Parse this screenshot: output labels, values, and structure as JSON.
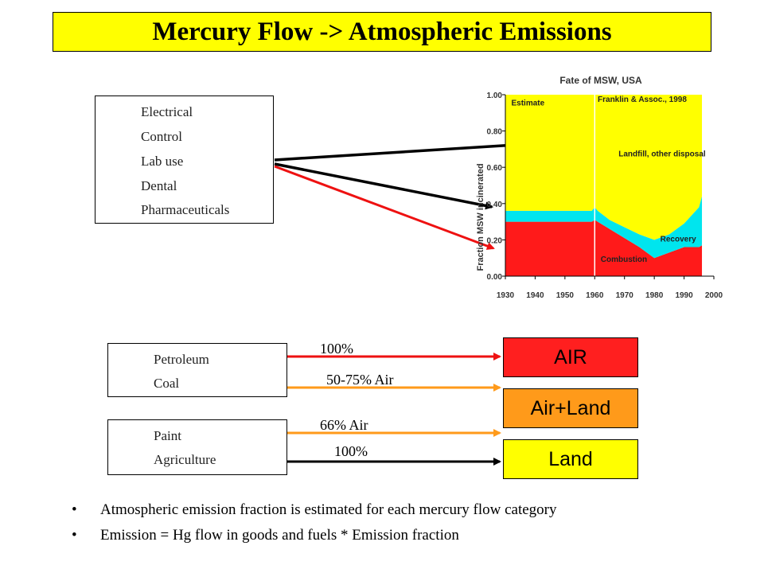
{
  "title": "Mercury Flow -> Atmospheric Emissions",
  "source_boxes": {
    "group1": [
      "Electrical",
      "Control",
      "Lab use",
      "Dental",
      "Pharmaceuticals"
    ],
    "group2": [
      "Petroleum",
      "Coal"
    ],
    "group3": [
      "Paint",
      "Agriculture"
    ]
  },
  "destinations": {
    "air": {
      "label": "AIR",
      "color": "#ff1f1f"
    },
    "air_land": {
      "label": "Air+Land",
      "color": "#ff9a1a"
    },
    "land": {
      "label": "Land",
      "color": "#ffff00"
    }
  },
  "flows": {
    "petroleum": "100%",
    "coal": "50-75% Air",
    "paint": "66% Air",
    "agriculture": "100%"
  },
  "bullets": [
    "Atmospheric emission fraction is estimated for each mercury flow category",
    "Emission  = Hg flow in goods and fuels * Emission fraction"
  ],
  "chart_data": {
    "type": "area",
    "title": "Fate of MSW, USA",
    "ylabel": "Fraction MSW incinerated",
    "xlabel": "",
    "xlim": [
      1930,
      2000
    ],
    "ylim": [
      0,
      1
    ],
    "x_ticks": [
      "1930",
      "1940",
      "1950",
      "1960",
      "1970",
      "1980",
      "1990",
      "2000"
    ],
    "y_ticks": [
      "0.00",
      "0.20",
      "0.40",
      "0.60",
      "0.80",
      "1.00"
    ],
    "x": [
      1930,
      1940,
      1950,
      1959,
      1960,
      1961,
      1965,
      1970,
      1975,
      1980,
      1985,
      1990,
      1995,
      1996
    ],
    "series": [
      {
        "name": "Combustion",
        "color": "#ff1a1a",
        "values": [
          0.3,
          0.3,
          0.3,
          0.3,
          0.31,
          0.3,
          0.26,
          0.21,
          0.16,
          0.1,
          0.13,
          0.16,
          0.16,
          0.17
        ]
      },
      {
        "name": "Recovery",
        "color": "#00e5ee",
        "values": [
          0.06,
          0.06,
          0.06,
          0.06,
          0.07,
          0.06,
          0.05,
          0.06,
          0.07,
          0.1,
          0.1,
          0.13,
          0.22,
          0.27
        ]
      },
      {
        "name": "Landfill, other disposal",
        "color": "#ffff00",
        "values": [
          0.64,
          0.64,
          0.64,
          0.64,
          0.62,
          0.64,
          0.69,
          0.73,
          0.77,
          0.8,
          0.77,
          0.71,
          0.62,
          0.56
        ]
      }
    ],
    "annotations": [
      "Estimate",
      "Franklin & Assoc., 1998",
      "Landfill, other disposal",
      "Recovery",
      "Combustion"
    ],
    "divider_x": 1960,
    "grid": false
  },
  "colors": {
    "red_arrow": "#ee1111",
    "orange_arrow": "#ff9a1a",
    "black_arrow": "#000000"
  }
}
